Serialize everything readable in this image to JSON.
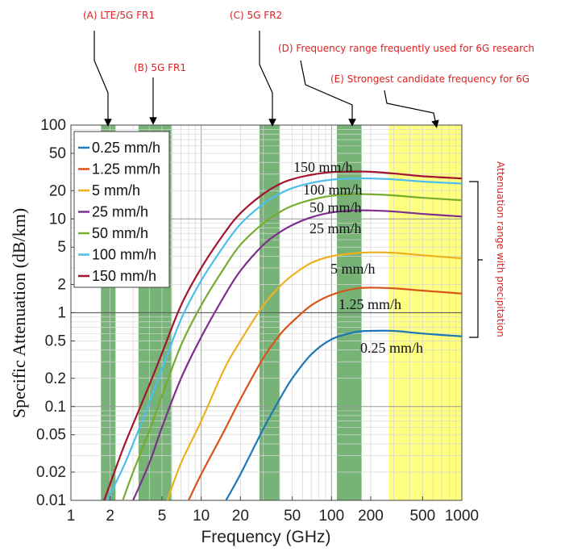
{
  "chart_data": {
    "type": "line",
    "xlabel": "Frequency (GHz)",
    "ylabel": "Specific Attenuation (dB/km)",
    "x_scale": "log",
    "y_scale": "log",
    "xlim": [
      1,
      1000
    ],
    "ylim": [
      0.01,
      100
    ],
    "grid": true,
    "legend_position": "top-left",
    "x_ticks": [
      {
        "value": 1,
        "label": "1"
      },
      {
        "value": 2,
        "label": "2"
      },
      {
        "value": 5,
        "label": "5"
      },
      {
        "value": 10,
        "label": "10"
      },
      {
        "value": 20,
        "label": "20"
      },
      {
        "value": 50,
        "label": "50"
      },
      {
        "value": 100,
        "label": "100"
      },
      {
        "value": 200,
        "label": "200"
      },
      {
        "value": 500,
        "label": "500"
      },
      {
        "value": 1000,
        "label": "1000"
      }
    ],
    "y_ticks": [
      {
        "value": 0.01,
        "label": "0.01"
      },
      {
        "value": 0.02,
        "label": "0.02"
      },
      {
        "value": 0.05,
        "label": "0.05"
      },
      {
        "value": 0.1,
        "label": "0.1"
      },
      {
        "value": 0.2,
        "label": "0.2"
      },
      {
        "value": 0.5,
        "label": "0.5"
      },
      {
        "value": 1,
        "label": "1"
      },
      {
        "value": 2,
        "label": "2"
      },
      {
        "value": 5,
        "label": "5"
      },
      {
        "value": 10,
        "label": "10"
      },
      {
        "value": 20,
        "label": "20"
      },
      {
        "value": 50,
        "label": "50"
      },
      {
        "value": 100,
        "label": "100"
      }
    ],
    "series": [
      {
        "name": "0.25 mm/h",
        "color": "#1f77b4",
        "label": "0.25 mm/h",
        "points": [
          [
            15.5,
            0.01
          ],
          [
            20,
            0.019
          ],
          [
            30,
            0.058
          ],
          [
            40,
            0.12
          ],
          [
            50,
            0.2
          ],
          [
            70,
            0.36
          ],
          [
            100,
            0.52
          ],
          [
            150,
            0.62
          ],
          [
            200,
            0.64
          ],
          [
            300,
            0.64
          ],
          [
            500,
            0.6
          ],
          [
            1000,
            0.56
          ]
        ]
      },
      {
        "name": "1.25 mm/h",
        "color": "#d95319",
        "label": "1.25 mm/h",
        "points": [
          [
            8,
            0.01
          ],
          [
            10,
            0.019
          ],
          [
            15,
            0.055
          ],
          [
            20,
            0.12
          ],
          [
            30,
            0.33
          ],
          [
            40,
            0.58
          ],
          [
            50,
            0.8
          ],
          [
            70,
            1.2
          ],
          [
            100,
            1.55
          ],
          [
            150,
            1.8
          ],
          [
            200,
            1.85
          ],
          [
            300,
            1.82
          ],
          [
            500,
            1.72
          ],
          [
            1000,
            1.6
          ]
        ]
      },
      {
        "name": "5 mm/h",
        "color": "#edb120",
        "label": "5 mm/h",
        "points": [
          [
            5.5,
            0.01
          ],
          [
            7,
            0.025
          ],
          [
            10,
            0.07
          ],
          [
            15,
            0.25
          ],
          [
            20,
            0.5
          ],
          [
            30,
            1.2
          ],
          [
            40,
            1.9
          ],
          [
            50,
            2.5
          ],
          [
            70,
            3.4
          ],
          [
            100,
            4.0
          ],
          [
            150,
            4.3
          ],
          [
            200,
            4.4
          ],
          [
            300,
            4.35
          ],
          [
            500,
            4.1
          ],
          [
            1000,
            3.8
          ]
        ]
      },
      {
        "name": "25 mm/h",
        "color": "#7e2f8e",
        "label": "25 mm/h",
        "points": [
          [
            3,
            0.01
          ],
          [
            4,
            0.025
          ],
          [
            5,
            0.06
          ],
          [
            7,
            0.2
          ],
          [
            10,
            0.55
          ],
          [
            15,
            1.5
          ],
          [
            20,
            2.8
          ],
          [
            30,
            5.3
          ],
          [
            40,
            7.2
          ],
          [
            50,
            8.6
          ],
          [
            70,
            10.4
          ],
          [
            100,
            11.7
          ],
          [
            150,
            12.3
          ],
          [
            200,
            12.3
          ],
          [
            300,
            12.0
          ],
          [
            500,
            11.3
          ],
          [
            1000,
            10.6
          ]
        ]
      },
      {
        "name": "50 mm/h",
        "color": "#77ac30",
        "label": "50 mm/h",
        "points": [
          [
            2.5,
            0.01
          ],
          [
            3,
            0.02
          ],
          [
            4,
            0.055
          ],
          [
            5,
            0.13
          ],
          [
            7,
            0.45
          ],
          [
            10,
            1.2
          ],
          [
            15,
            3.0
          ],
          [
            20,
            5.3
          ],
          [
            30,
            9.0
          ],
          [
            40,
            11.8
          ],
          [
            50,
            13.8
          ],
          [
            70,
            16.0
          ],
          [
            100,
            17.6
          ],
          [
            150,
            18.3
          ],
          [
            200,
            18.3
          ],
          [
            300,
            17.8
          ],
          [
            500,
            16.8
          ],
          [
            1000,
            15.8
          ]
        ]
      },
      {
        "name": "100 mm/h",
        "color": "#4dbeee",
        "label": "100 mm/h",
        "points": [
          [
            1.9,
            0.01
          ],
          [
            2.5,
            0.022
          ],
          [
            3,
            0.04
          ],
          [
            4,
            0.11
          ],
          [
            5,
            0.25
          ],
          [
            7,
            0.85
          ],
          [
            10,
            2.2
          ],
          [
            15,
            5.2
          ],
          [
            20,
            8.8
          ],
          [
            30,
            14.5
          ],
          [
            40,
            18.5
          ],
          [
            50,
            21.3
          ],
          [
            70,
            24.2
          ],
          [
            100,
            26.2
          ],
          [
            150,
            27.0
          ],
          [
            200,
            27.0
          ],
          [
            300,
            26.4
          ],
          [
            500,
            25.0
          ],
          [
            1000,
            23.8
          ]
        ]
      },
      {
        "name": "150 mm/h",
        "color": "#a2142f",
        "label": "150 mm/h",
        "points": [
          [
            1.8,
            0.01
          ],
          [
            2,
            0.015
          ],
          [
            2.5,
            0.035
          ],
          [
            3,
            0.065
          ],
          [
            4,
            0.17
          ],
          [
            5,
            0.37
          ],
          [
            7,
            1.2
          ],
          [
            10,
            3.0
          ],
          [
            15,
            7.0
          ],
          [
            20,
            11.5
          ],
          [
            30,
            18.5
          ],
          [
            40,
            23.5
          ],
          [
            50,
            26.5
          ],
          [
            70,
            29.5
          ],
          [
            100,
            31.5
          ],
          [
            150,
            32.0
          ],
          [
            200,
            31.8
          ],
          [
            300,
            30.5
          ],
          [
            500,
            28.5
          ],
          [
            1000,
            27.0
          ]
        ]
      }
    ],
    "bands": [
      {
        "name": "(A) LTE/5G FR1",
        "from": 1.7,
        "to": 2.2,
        "color": "#2e8b2e"
      },
      {
        "name": "(B) 5G FR1",
        "from": 3.3,
        "to": 5.9,
        "color": "#2e8b2e"
      },
      {
        "name": "(C) 5G FR2",
        "from": 28,
        "to": 40,
        "color": "#2e8b2e"
      },
      {
        "name": "(D) Frequency range frequently used for 6G research",
        "from": 110,
        "to": 170,
        "color": "#2e8b2e"
      },
      {
        "name": "(E) Strongest candidate frequency for 6G",
        "from": 275,
        "to": 1000,
        "color": "#ffff55"
      }
    ],
    "annotations": {
      "a": "(A) LTE/5G FR1",
      "b": "(B) 5G FR1",
      "c": "(C) 5G FR2",
      "d": "(D) Frequency range frequently used for 6G research",
      "e": "(E) Strongest candidate frequency for 6G",
      "range": "Attenuation range with precipitation"
    },
    "annotation_color": "#e02020"
  }
}
